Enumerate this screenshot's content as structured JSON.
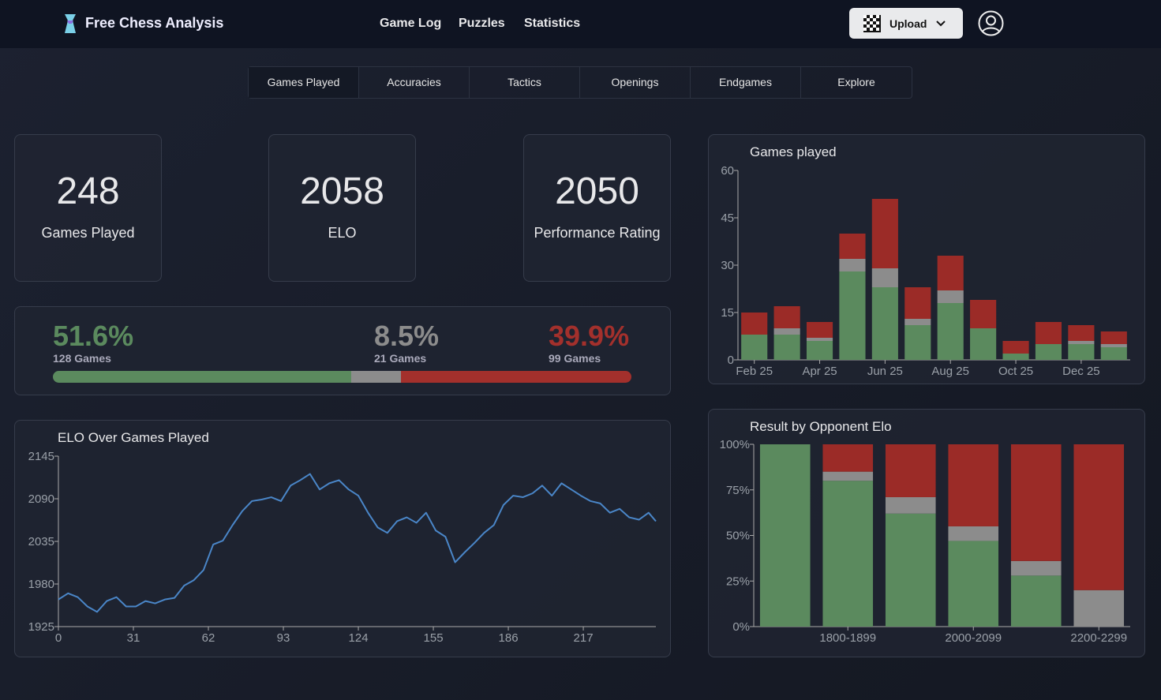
{
  "header": {
    "brand": "Free Chess Analysis",
    "nav": [
      "Game Log",
      "Puzzles",
      "Statistics"
    ],
    "upload": "Upload"
  },
  "tabs": [
    "Games Played",
    "Accuracies",
    "Tactics",
    "Openings",
    "Endgames",
    "Explore"
  ],
  "stats": [
    {
      "value": 248,
      "label": "Games Played"
    },
    {
      "value": 2058,
      "label": "ELO"
    },
    {
      "value": 2050,
      "label": "Performance Rating"
    }
  ],
  "results": {
    "values": [
      51.6,
      8.5,
      39.9
    ],
    "value_labels": [
      "51.6%",
      "8.5%",
      "39.9%"
    ],
    "games": [
      "128 Games",
      "21 Games",
      "99 Games"
    ],
    "colors": [
      "#5b8a5e",
      "#8c8c8c",
      "#a3302c"
    ]
  },
  "chart_data": [
    {
      "type": "bar",
      "stacked": true,
      "title": "Games played",
      "categories": [
        "Feb 25",
        null,
        "Apr 25",
        null,
        "Jun 25",
        null,
        "Aug 25",
        null,
        "Oct 25",
        null,
        "Dec 25",
        null
      ],
      "series": [
        {
          "color": "#5b8a5e",
          "values": [
            8,
            8,
            6,
            28,
            23,
            11,
            18,
            10,
            2,
            5,
            5,
            4
          ]
        },
        {
          "color": "#8c8c8c",
          "values": [
            0,
            2,
            1,
            4,
            6,
            2,
            4,
            0,
            0,
            0,
            1,
            1
          ]
        },
        {
          "color": "#9b2b27",
          "values": [
            7,
            7,
            5,
            8,
            22,
            10,
            11,
            9,
            4,
            7,
            5,
            4
          ]
        }
      ],
      "ylim": [
        0,
        60
      ],
      "yticks": [
        0,
        15,
        30,
        45,
        60
      ]
    },
    {
      "type": "bar",
      "stacked": true,
      "title": "Result by Opponent Elo",
      "categories": [
        null,
        "1800-1899",
        null,
        "2000-2099",
        null,
        "2200-2299"
      ],
      "series": [
        {
          "color": "#5b8a5e",
          "values": [
            100,
            80,
            62,
            47,
            28,
            0
          ]
        },
        {
          "color": "#8c8c8c",
          "values": [
            0,
            5,
            9,
            8,
            8,
            20
          ]
        },
        {
          "color": "#9b2b27",
          "values": [
            0,
            15,
            29,
            45,
            64,
            80
          ]
        }
      ],
      "ylim": [
        0,
        100
      ],
      "yticks": [
        {
          "value": 0,
          "label": "0%"
        },
        {
          "value": 25,
          "label": "25%"
        },
        {
          "value": 50,
          "label": "50%"
        },
        {
          "value": 75,
          "label": "75%"
        },
        {
          "value": 100,
          "label": "100%"
        }
      ]
    },
    {
      "type": "line",
      "title": "ELO Over Games Played",
      "x": [
        0,
        4,
        8,
        12,
        16,
        20,
        24,
        28,
        32,
        36,
        40,
        44,
        48,
        52,
        56,
        60,
        64,
        68,
        72,
        76,
        80,
        84,
        88,
        92,
        96,
        100,
        104,
        108,
        112,
        116,
        120,
        124,
        128,
        132,
        136,
        140,
        144,
        148,
        152,
        156,
        160,
        164,
        168,
        172,
        176,
        180,
        184,
        188,
        192,
        196,
        200,
        204,
        208,
        212,
        216,
        220,
        224,
        228,
        232,
        236,
        240,
        244,
        247
      ],
      "series": [
        {
          "color": "#4a86c8",
          "values": [
            1960,
            1968,
            1963,
            1951,
            1944,
            1958,
            1963,
            1951,
            1951,
            1958,
            1955,
            1960,
            1962,
            1978,
            1985,
            1998,
            2031,
            2036,
            2056,
            2074,
            2087,
            2089,
            2092,
            2087,
            2107,
            2114,
            2122,
            2102,
            2110,
            2114,
            2102,
            2094,
            2072,
            2053,
            2046,
            2061,
            2066,
            2059,
            2072,
            2049,
            2041,
            2008,
            2021,
            2033,
            2046,
            2056,
            2082,
            2094,
            2092,
            2097,
            2107,
            2094,
            2110,
            2102,
            2094,
            2087,
            2084,
            2072,
            2077,
            2066,
            2063,
            2072,
            2061
          ]
        }
      ],
      "xlim": [
        0,
        247
      ],
      "xticks": [
        0,
        31,
        62,
        93,
        124,
        155,
        186,
        217
      ],
      "ylim": [
        1925,
        2145
      ],
      "yticks": [
        1925,
        1980,
        2035,
        2090,
        2145
      ]
    }
  ]
}
